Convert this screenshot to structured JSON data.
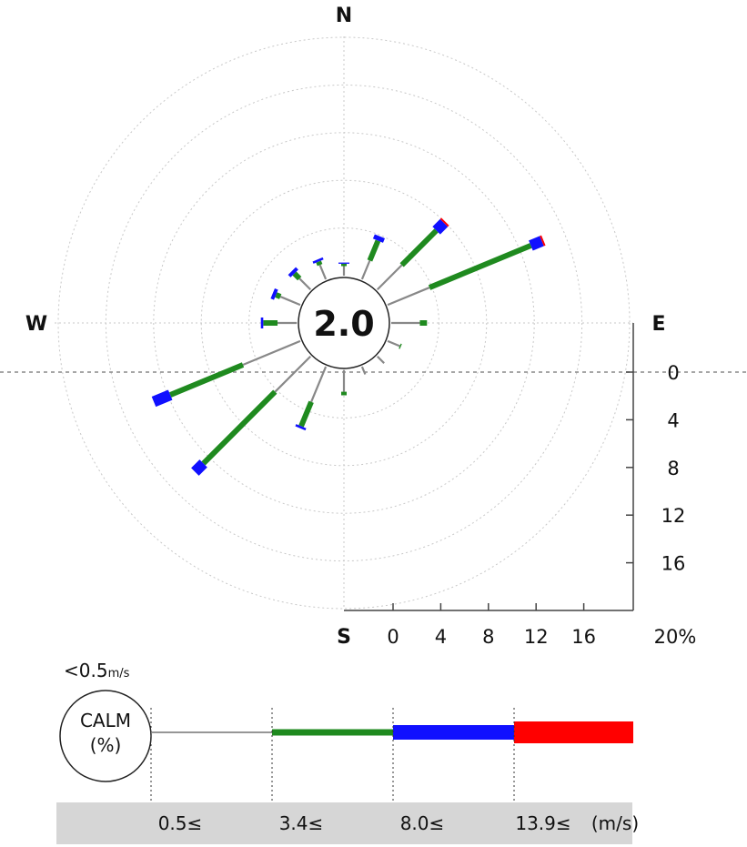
{
  "chart_data": {
    "type": "wind-rose",
    "compass": {
      "n": "N",
      "e": "E",
      "s": "S",
      "w": "W"
    },
    "calm": {
      "value": "2.0",
      "threshold_label": "<0.5",
      "threshold_unit": "m/s",
      "circle_label": "CALM",
      "circle_unit": "(%)"
    },
    "radial_axis": {
      "ticks": [
        "0",
        "4",
        "8",
        "12",
        "16"
      ],
      "end_label": "20%",
      "max": 20
    },
    "speed_classes": [
      {
        "label": "0.5≤",
        "color": "#888888"
      },
      {
        "label": "3.4≤",
        "color": "#1f8a1f"
      },
      {
        "label": "8.0≤",
        "color": "#1010ff"
      },
      {
        "label": "13.9≤",
        "color": "#ff0000"
      }
    ],
    "speed_unit": "(m/s)",
    "directions": [
      {
        "dir": "N",
        "bands": [
          0.8,
          0.2,
          0.1,
          0
        ]
      },
      {
        "dir": "NNE",
        "bands": [
          1.7,
          1.8,
          0.4,
          0
        ]
      },
      {
        "dir": "NE",
        "bands": [
          2.9,
          4.1,
          0.9,
          0.15
        ]
      },
      {
        "dir": "ENE",
        "bands": [
          3.8,
          9.2,
          1.0,
          0.15
        ]
      },
      {
        "dir": "E",
        "bands": [
          2.4,
          0.6,
          0,
          0
        ]
      },
      {
        "dir": "ESE",
        "bands": [
          1.1,
          0.1,
          0,
          0
        ]
      },
      {
        "dir": "SE",
        "bands": [
          0.8,
          0,
          0,
          0
        ]
      },
      {
        "dir": "SSE",
        "bands": [
          0.7,
          0,
          0,
          0
        ]
      },
      {
        "dir": "S",
        "bands": [
          1.8,
          0.3,
          0,
          0
        ]
      },
      {
        "dir": "SSW",
        "bands": [
          3.2,
          2.2,
          0.2,
          0
        ]
      },
      {
        "dir": "SW",
        "bands": [
          4.2,
          8.5,
          1.0,
          0
        ]
      },
      {
        "dir": "WSW",
        "bands": [
          5.2,
          6.6,
          1.5,
          0
        ]
      },
      {
        "dir": "W",
        "bands": [
          1.6,
          1.2,
          0.2,
          0
        ]
      },
      {
        "dir": "WNW",
        "bands": [
          1.8,
          0.4,
          0.3,
          0
        ]
      },
      {
        "dir": "NW",
        "bands": [
          1.3,
          0.6,
          0.3,
          0
        ]
      },
      {
        "dir": "NNW",
        "bands": [
          1.3,
          0.3,
          0.2,
          0
        ]
      }
    ]
  }
}
